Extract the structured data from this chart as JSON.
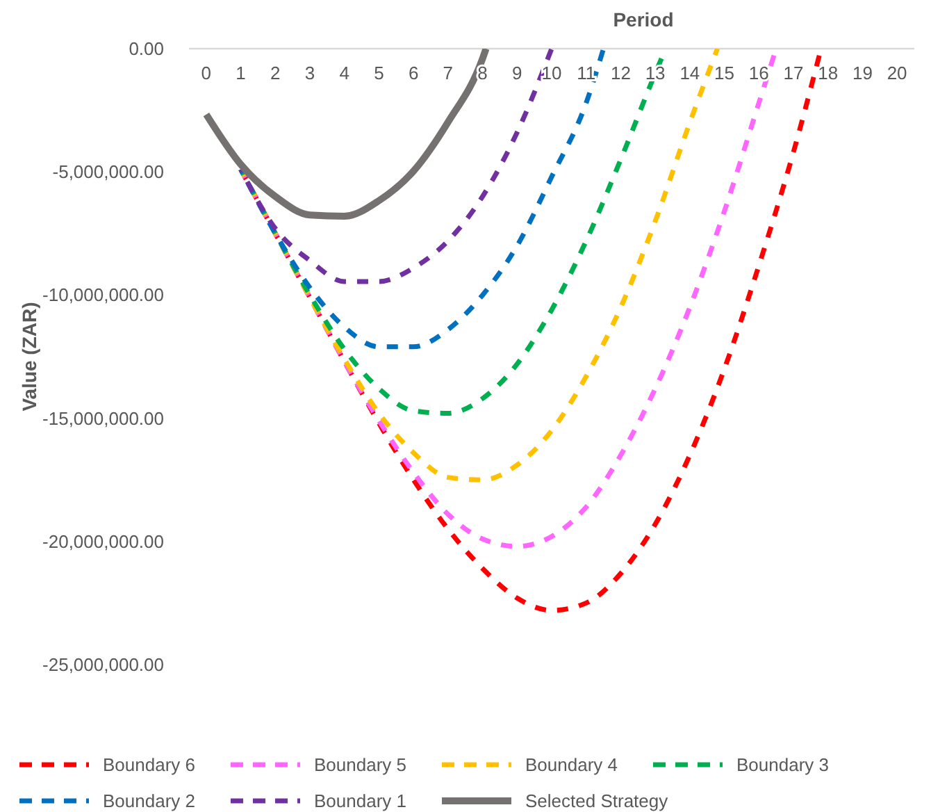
{
  "chart_data": {
    "type": "line",
    "xlabel": "Period",
    "ylabel": "Value (ZAR)",
    "xlim": [
      -0.5,
      20.5
    ],
    "xticks": [
      0,
      1,
      2,
      3,
      4,
      5,
      6,
      7,
      8,
      9,
      10,
      11,
      12,
      13,
      14,
      15,
      16,
      17,
      18,
      19,
      20
    ],
    "ylim": [
      -25000000,
      0
    ],
    "yticks": [
      {
        "value": 0,
        "label": "0.00"
      },
      {
        "value": -5000000,
        "label": "-5,000,000.00"
      },
      {
        "value": -10000000,
        "label": "-10,000,000.00"
      },
      {
        "value": -15000000,
        "label": "-15,000,000.00"
      },
      {
        "value": -20000000,
        "label": "-20,000,000.00"
      },
      {
        "value": -25000000,
        "label": "-25,000,000.00"
      }
    ],
    "grid": false,
    "legend": "bottom",
    "marker": "none",
    "series": [
      {
        "name": "Boundary 6",
        "color": "#ff0000",
        "line_style": "dashed",
        "x": [
          1,
          2,
          3,
          4,
          5,
          6,
          7,
          8,
          9,
          10,
          11,
          12,
          13,
          14,
          15,
          16,
          17,
          17.8
        ],
        "values": [
          -4900000,
          -7500000,
          -10100000,
          -12700000,
          -15200000,
          -17500000,
          -19500000,
          -21100000,
          -22300000,
          -22800000,
          -22500000,
          -21300000,
          -19300000,
          -16500000,
          -13000000,
          -8800000,
          -4200000,
          0
        ]
      },
      {
        "name": "Boundary 5",
        "color": "#ff66ff",
        "line_style": "dashed",
        "x": [
          1,
          2,
          3,
          4,
          5,
          6,
          7,
          8,
          9,
          10,
          11,
          12,
          13,
          14,
          15,
          16,
          16.5
        ],
        "values": [
          -4900000,
          -7500000,
          -10100000,
          -12700000,
          -15100000,
          -17200000,
          -18900000,
          -19900000,
          -20200000,
          -19800000,
          -18600000,
          -16500000,
          -13800000,
          -10500000,
          -6600000,
          -2200000,
          0
        ]
      },
      {
        "name": "Boundary 4",
        "color": "#ffc000",
        "line_style": "dashed",
        "x": [
          1,
          2,
          3,
          4,
          5,
          6,
          7,
          8,
          9,
          10,
          11,
          12,
          13,
          14,
          14.8
        ],
        "values": [
          -4900000,
          -7500000,
          -10100000,
          -12600000,
          -14800000,
          -16400000,
          -17400000,
          -17500000,
          -16900000,
          -15500000,
          -13300000,
          -10500000,
          -7000000,
          -3000000,
          0
        ]
      },
      {
        "name": "Boundary 3",
        "color": "#00b050",
        "line_style": "dashed",
        "x": [
          1,
          2,
          3,
          4,
          5,
          6,
          7,
          8,
          9,
          10,
          11,
          12,
          13,
          13.3
        ],
        "values": [
          -4900000,
          -7500000,
          -10000000,
          -12200000,
          -13800000,
          -14700000,
          -14800000,
          -14200000,
          -12800000,
          -10600000,
          -7800000,
          -4500000,
          -1000000,
          0
        ]
      },
      {
        "name": "Boundary 2",
        "color": "#0070c0",
        "line_style": "dashed",
        "x": [
          1,
          2,
          3,
          4,
          5,
          6,
          7,
          8,
          9,
          10,
          11,
          11.5
        ],
        "values": [
          -4900000,
          -7500000,
          -9700000,
          -11300000,
          -12100000,
          -12100000,
          -11400000,
          -10000000,
          -8000000,
          -5200000,
          -2200000,
          0
        ]
      },
      {
        "name": "Boundary 1",
        "color": "#7030a0",
        "line_style": "dashed",
        "x": [
          1,
          2,
          3,
          4,
          5,
          6,
          7,
          8,
          9,
          10
        ],
        "values": [
          -4900000,
          -7300000,
          -8600000,
          -9450000,
          -9450000,
          -8900000,
          -7800000,
          -6000000,
          -3400000,
          0
        ]
      },
      {
        "name": "Selected Strategy",
        "color": "#767171",
        "line_style": "solid",
        "x": [
          0,
          1,
          2,
          3,
          4,
          5,
          6,
          7,
          8,
          8.1
        ],
        "values": [
          -2670000,
          -4700000,
          -6000000,
          -6750000,
          -6800000,
          -6170000,
          -4970000,
          -2980000,
          -400000,
          0
        ]
      }
    ]
  }
}
